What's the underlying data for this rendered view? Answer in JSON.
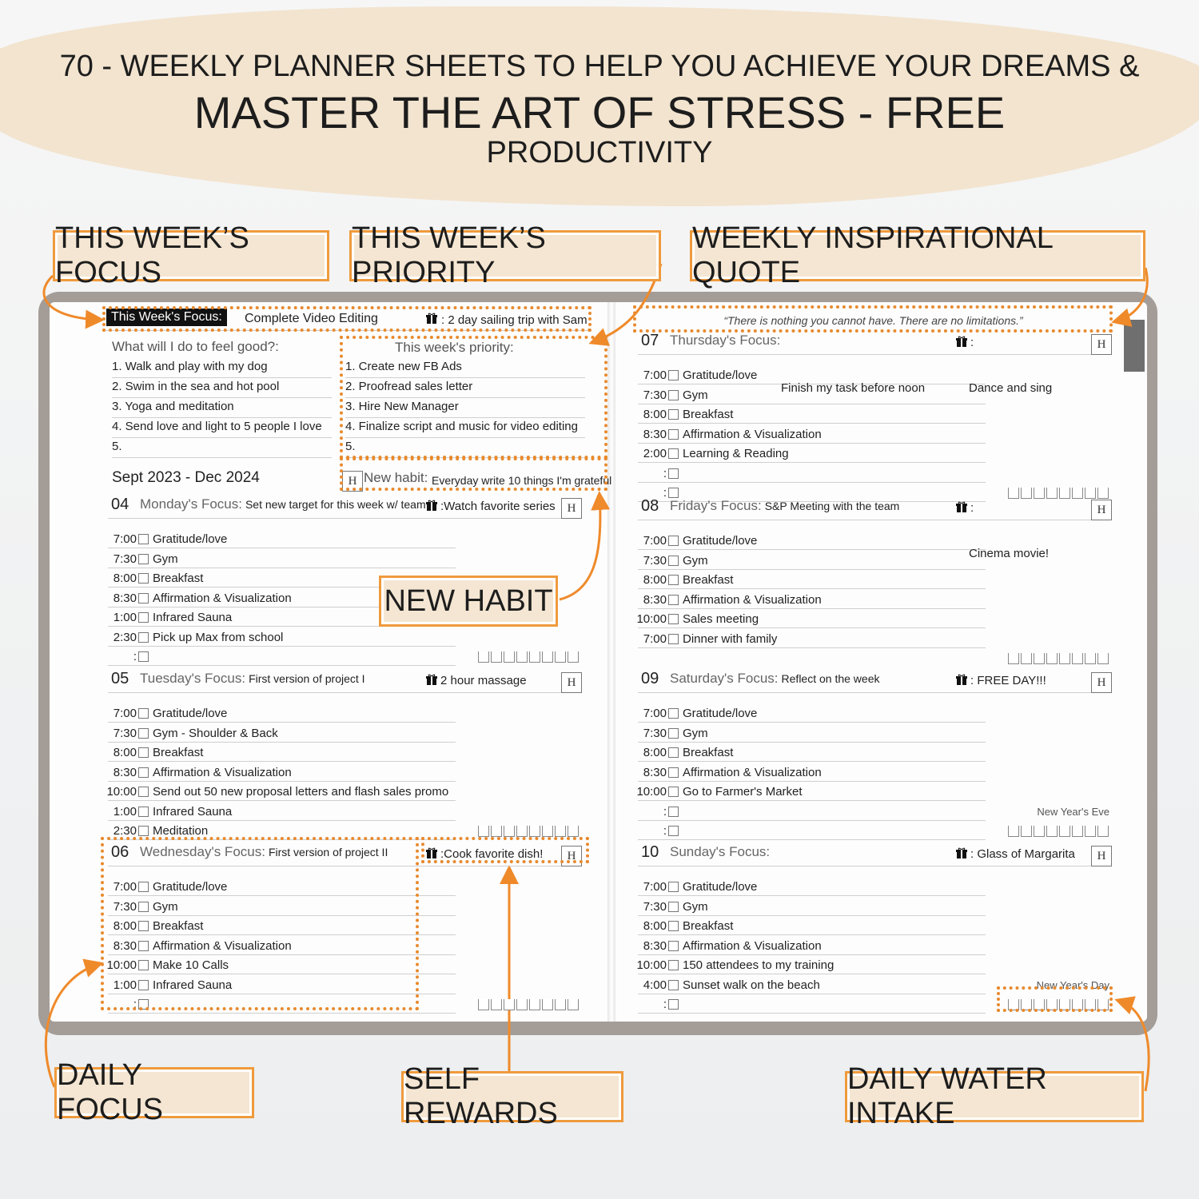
{
  "header": {
    "line1": "70 - WEEKLY PLANNER  SHEETS TO HELP YOU ACHIEVE YOUR DREAMS &",
    "line2": "MASTER THE ART OF STRESS - FREE",
    "line3": "PRODUCTIVITY"
  },
  "callouts": [
    "THIS WEEK’S FOCUS",
    "THIS WEEK’S PRIORITY",
    "WEEKLY INSPIRATIONAL QUOTE",
    "NEW HABIT",
    "DAILY FOCUS",
    "SELF REWARDS",
    "DAILY WATER INTAKE"
  ],
  "left_page": {
    "focus_label": "This Week's Focus:",
    "focus": "Complete Video Editing",
    "reward": ": 2 day sailing trip with Sam",
    "feel_good": {
      "title": "What will I do to feel good?:",
      "items": [
        "1. Walk and play with my dog",
        "2. Swim in the sea and hot pool",
        "3. Yoga and meditation",
        "4. Send love and light to 5 people I love",
        "5."
      ]
    },
    "priority": {
      "title": "This week's priority:",
      "items": [
        "1. Create new FB Ads",
        "2. Proofread sales letter",
        "3. Hire New Manager",
        "4. Finalize script and music for video editing",
        "5."
      ]
    },
    "date_range": "Sept 2023 - Dec 2024",
    "habit": {
      "mark": "H",
      "label": "New habit:",
      "text": "Everyday write 10 things I'm grateful"
    },
    "days": [
      {
        "number": "04",
        "label": "Monday's Focus:",
        "focus": "Set new target for this week w/ team",
        "reward": ":Watch favorite series",
        "mark": "H",
        "entries": [
          {
            "time": "7:00",
            "text": "Gratitude/love"
          },
          {
            "time": "7:30",
            "text": "Gym"
          },
          {
            "time": "8:00",
            "text": "Breakfast"
          },
          {
            "time": "8:30",
            "text": "Affirmation & Visualization"
          },
          {
            "time": "1:00",
            "text": "Infrared Sauna"
          },
          {
            "time": "2:30",
            "text": "Pick up Max from school"
          },
          {
            "time": ":"
          }
        ]
      },
      {
        "number": "05",
        "label": "Tuesday's Focus:",
        "focus": "First version of project I",
        "reward": "2 hour massage",
        "mark": "H",
        "entries": [
          {
            "time": "7:00",
            "text": "Gratitude/love"
          },
          {
            "time": "7:30",
            "text": "Gym - Shoulder & Back"
          },
          {
            "time": "8:00",
            "text": "Breakfast"
          },
          {
            "time": "8:30",
            "text": "Affirmation & Visualization"
          },
          {
            "time": "10:00",
            "text": "Send out 50 new proposal letters and flash sales promo"
          },
          {
            "time": "1:00",
            "text": "Infrared Sauna"
          },
          {
            "time": "2:30",
            "text": "Meditation"
          }
        ]
      },
      {
        "number": "06",
        "label": "Wednesday's Focus:",
        "focus": "First version of project II",
        "reward": ":Cook favorite dish!",
        "mark": "H",
        "entries": [
          {
            "time": "7:00",
            "text": "Gratitude/love"
          },
          {
            "time": "7:30",
            "text": "Gym"
          },
          {
            "time": "8:00",
            "text": "Breakfast"
          },
          {
            "time": "8:30",
            "text": "Affirmation & Visualization"
          },
          {
            "time": "10:00",
            "text": "Make 10 Calls"
          },
          {
            "time": "1:00",
            "text": "Infrared Sauna"
          },
          {
            "time": ":"
          }
        ]
      }
    ]
  },
  "right_page": {
    "quote": "“There is nothing you cannot have. There are no limitations.”",
    "days": [
      {
        "number": "07",
        "label": "Thursday's Focus:",
        "reward": ":",
        "mark": "H",
        "entries": [
          {
            "time": "7:00",
            "text": "Gratitude/love"
          },
          {
            "time": "7:30",
            "text": "Gym"
          },
          {
            "time": "8:00",
            "text": "Breakfast"
          },
          {
            "time": "8:30",
            "text": "Affirmation & Visualization"
          },
          {
            "time": "2:00",
            "text": "Learning & Reading"
          },
          {
            "time": ":"
          },
          {
            "time": ":"
          }
        ],
        "notes": [
          "Finish my task before noon",
          "Dance and sing"
        ]
      },
      {
        "number": "08",
        "label": "Friday's Focus:",
        "focus": "S&P Meeting with the team",
        "reward": ":",
        "mark": "H",
        "entries": [
          {
            "time": "7:00",
            "text": "Gratitude/love"
          },
          {
            "time": "7:30",
            "text": "Gym"
          },
          {
            "time": "8:00",
            "text": "Breakfast"
          },
          {
            "time": "8:30",
            "text": "Affirmation & Visualization"
          },
          {
            "time": "10:00",
            "text": "Sales meeting"
          },
          {
            "time": "7:00",
            "text": "Dinner with family"
          }
        ],
        "notes": [
          "Cinema movie!"
        ]
      },
      {
        "number": "09",
        "label": "Saturday's Focus:",
        "focus": "Reflect on the week",
        "reward": ": FREE DAY!!!",
        "mark": "H",
        "entries": [
          {
            "time": "7:00",
            "text": "Gratitude/love"
          },
          {
            "time": "7:30",
            "text": "Gym"
          },
          {
            "time": "8:00",
            "text": "Breakfast"
          },
          {
            "time": "8:30",
            "text": "Affirmation & Visualization"
          },
          {
            "time": "10:00",
            "text": "Go to Farmer's Market"
          },
          {
            "time": ":"
          },
          {
            "time": ":"
          }
        ],
        "holiday": "New Year's Eve"
      },
      {
        "number": "10",
        "label": "Sunday's Focus:",
        "reward": ": Glass of Margarita",
        "mark": "H",
        "entries": [
          {
            "time": "7:00",
            "text": "Gratitude/love"
          },
          {
            "time": "7:30",
            "text": "Gym"
          },
          {
            "time": "8:00",
            "text": "Breakfast"
          },
          {
            "time": "8:30",
            "text": "Affirmation & Visualization"
          },
          {
            "time": "10:00",
            "text": "150 attendees to my training"
          },
          {
            "time": "4:00",
            "text": "Sunset walk on the beach"
          },
          {
            "time": ":"
          }
        ],
        "holiday": "New Year's Day"
      }
    ]
  }
}
